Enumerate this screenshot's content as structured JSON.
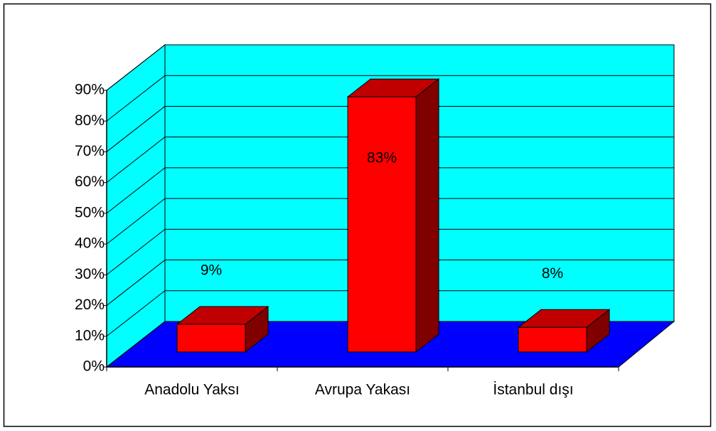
{
  "chart_data": {
    "type": "bar3d",
    "categories": [
      "Anadolu Yaksı",
      "Avrupa Yakası",
      "İstanbul dışı"
    ],
    "values": [
      9,
      83,
      8
    ],
    "value_labels": [
      "9%",
      "83%",
      "8%"
    ],
    "color": "#ff0000",
    "wall_color": "#00ffff",
    "floor_color": "#0000ff",
    "ylim": [
      0,
      90
    ],
    "yticks": [
      {
        "value": 0,
        "label": "0%"
      },
      {
        "value": 10,
        "label": "10%"
      },
      {
        "value": 20,
        "label": "20%"
      },
      {
        "value": 30,
        "label": "30%"
      },
      {
        "value": 40,
        "label": "40%"
      },
      {
        "value": 50,
        "label": "50%"
      },
      {
        "value": 60,
        "label": "60%"
      },
      {
        "value": 70,
        "label": "70%"
      },
      {
        "value": 80,
        "label": "80%"
      },
      {
        "value": 90,
        "label": "90%"
      }
    ],
    "grid": true
  }
}
